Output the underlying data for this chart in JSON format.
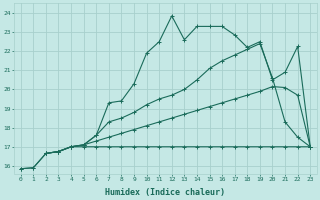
{
  "xlabel": "Humidex (Indice chaleur)",
  "bg_color": "#c5e8e5",
  "grid_color": "#a8d0cc",
  "line_color": "#1a6b5a",
  "xlim": [
    -0.5,
    23.5
  ],
  "ylim": [
    15.6,
    24.5
  ],
  "xticks": [
    0,
    1,
    2,
    3,
    4,
    5,
    6,
    7,
    8,
    9,
    10,
    11,
    12,
    13,
    14,
    15,
    16,
    17,
    18,
    19,
    20,
    21,
    22,
    23
  ],
  "yticks": [
    16,
    17,
    18,
    19,
    20,
    21,
    22,
    23,
    24
  ],
  "line1_x": [
    0,
    1,
    2,
    3,
    4,
    5,
    6,
    7,
    8,
    9,
    10,
    11,
    12,
    13,
    14,
    15,
    16,
    17,
    18,
    19,
    20,
    21,
    22,
    23
  ],
  "line1_y": [
    15.85,
    15.9,
    16.65,
    16.75,
    17.0,
    17.0,
    17.0,
    17.0,
    17.0,
    17.0,
    17.0,
    17.0,
    17.0,
    17.0,
    17.0,
    17.0,
    17.0,
    17.0,
    17.0,
    17.0,
    17.0,
    17.0,
    17.0,
    17.0
  ],
  "line2_x": [
    0,
    1,
    2,
    3,
    4,
    5,
    6,
    7,
    8,
    9,
    10,
    11,
    12,
    13,
    14,
    15,
    16,
    17,
    18,
    19,
    20,
    21,
    22,
    23
  ],
  "line2_y": [
    15.85,
    15.9,
    16.65,
    16.75,
    17.0,
    17.1,
    17.3,
    17.5,
    17.7,
    17.9,
    18.1,
    18.3,
    18.5,
    18.7,
    18.9,
    19.1,
    19.3,
    19.5,
    19.7,
    19.9,
    20.15,
    20.1,
    19.7,
    17.0
  ],
  "line3_x": [
    2,
    3,
    4,
    5,
    6,
    7,
    8,
    9,
    10,
    11,
    12,
    13,
    14,
    15,
    16,
    17,
    18,
    19,
    20,
    21,
    22,
    23
  ],
  "line3_y": [
    16.65,
    16.75,
    17.0,
    17.1,
    17.6,
    18.3,
    18.5,
    18.8,
    19.2,
    19.5,
    19.7,
    20.0,
    20.5,
    21.1,
    21.5,
    21.8,
    22.1,
    22.4,
    20.6,
    18.3,
    17.5,
    17.0
  ],
  "line4_x": [
    2,
    3,
    4,
    5,
    6,
    7,
    8,
    9,
    10,
    11,
    12,
    13,
    14,
    15,
    16,
    17,
    18,
    19,
    20,
    21,
    22,
    23
  ],
  "line4_y": [
    16.65,
    16.75,
    17.0,
    17.1,
    17.6,
    19.3,
    19.4,
    20.3,
    21.9,
    22.5,
    23.85,
    22.6,
    23.3,
    23.3,
    23.3,
    22.85,
    22.2,
    22.5,
    20.5,
    20.9,
    22.25,
    17.0
  ]
}
